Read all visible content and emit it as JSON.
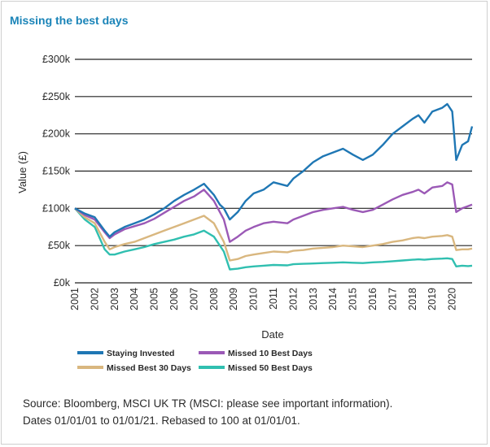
{
  "title": "Missing the best days",
  "source_lines": [
    "Source: Bloomberg, MSCI UK TR (MSCI: please see important information).",
    "Dates 01/01/01 to 01/01/21. Rebased to 100 at 01/01/01."
  ],
  "chart_data": {
    "type": "line",
    "xlabel": "Date",
    "ylabel": "Value (£)",
    "ylim": [
      0,
      300000
    ],
    "yticks": [
      0,
      50000,
      100000,
      150000,
      200000,
      250000,
      300000
    ],
    "ytick_labels": [
      "£0k",
      "£50k",
      "£100k",
      "£150k",
      "£200k",
      "£250k",
      "£300k"
    ],
    "xlim": [
      2001,
      2021
    ],
    "xtick_labels": [
      "2001",
      "2002",
      "2003",
      "2004",
      "2005",
      "2006",
      "2007",
      "2008",
      "2009",
      "2010",
      "2011",
      "2012",
      "2013",
      "2014",
      "2015",
      "2016",
      "2017",
      "2018",
      "2019",
      "2020"
    ],
    "grid": "horizontal",
    "legend": "bottom",
    "x": [
      2001.0,
      2001.5,
      2002.0,
      2002.5,
      2002.75,
      2003.0,
      2003.5,
      2004.0,
      2004.5,
      2005.0,
      2005.5,
      2006.0,
      2006.5,
      2007.0,
      2007.5,
      2008.0,
      2008.3,
      2008.5,
      2008.8,
      2009.2,
      2009.6,
      2010.0,
      2010.5,
      2011.0,
      2011.7,
      2012.0,
      2012.5,
      2013.0,
      2013.5,
      2014.0,
      2014.5,
      2015.0,
      2015.5,
      2016.0,
      2016.5,
      2017.0,
      2017.5,
      2018.0,
      2018.3,
      2018.6,
      2019.0,
      2019.5,
      2019.75,
      2020.0,
      2020.2,
      2020.5,
      2020.8,
      2021.0
    ],
    "series": [
      {
        "name": "Staying Invested",
        "color": "#1f77b4",
        "values": [
          100000,
          93000,
          88000,
          70000,
          62000,
          68000,
          75000,
          80000,
          85000,
          92000,
          100000,
          110000,
          118000,
          125000,
          133000,
          118000,
          105000,
          100000,
          85000,
          95000,
          110000,
          120000,
          125000,
          135000,
          130000,
          140000,
          150000,
          162000,
          170000,
          175000,
          180000,
          172000,
          165000,
          172000,
          185000,
          200000,
          210000,
          220000,
          225000,
          215000,
          230000,
          235000,
          240000,
          230000,
          165000,
          185000,
          190000,
          210000
        ]
      },
      {
        "name": "Missed 10 Best Days",
        "color": "#9b59b6",
        "values": [
          100000,
          91000,
          85000,
          68000,
          60000,
          65000,
          72000,
          76000,
          80000,
          86000,
          94000,
          102000,
          110000,
          116000,
          125000,
          110000,
          95000,
          85000,
          55000,
          62000,
          70000,
          75000,
          80000,
          82000,
          80000,
          85000,
          90000,
          95000,
          98000,
          100000,
          102000,
          98000,
          95000,
          98000,
          105000,
          112000,
          118000,
          122000,
          125000,
          120000,
          128000,
          130000,
          135000,
          132000,
          95000,
          100000,
          103000,
          105000
        ]
      },
      {
        "name": "Missed Best 30 Days",
        "color": "#d9b77f",
        "values": [
          100000,
          88000,
          80000,
          55000,
          45000,
          48000,
          52000,
          55000,
          60000,
          65000,
          70000,
          75000,
          80000,
          85000,
          90000,
          80000,
          65000,
          55000,
          30000,
          32000,
          36000,
          38000,
          40000,
          42000,
          41000,
          43000,
          44000,
          46000,
          47000,
          48000,
          50000,
          49000,
          48000,
          50000,
          52000,
          55000,
          57000,
          60000,
          61000,
          60000,
          62000,
          63000,
          64000,
          62000,
          44000,
          45000,
          45000,
          46000
        ]
      },
      {
        "name": "Missed 50 Best Days",
        "color": "#30bfb0",
        "values": [
          100000,
          85000,
          75000,
          45000,
          38000,
          38000,
          42000,
          45000,
          48000,
          52000,
          55000,
          58000,
          62000,
          65000,
          70000,
          62000,
          50000,
          42000,
          18000,
          19000,
          21000,
          22000,
          23000,
          24000,
          23500,
          25000,
          25500,
          26000,
          26500,
          27000,
          27500,
          27000,
          26500,
          27500,
          28000,
          29000,
          30000,
          31000,
          31500,
          31000,
          32000,
          32500,
          33000,
          32000,
          22000,
          23000,
          22500,
          23000
        ]
      }
    ]
  }
}
